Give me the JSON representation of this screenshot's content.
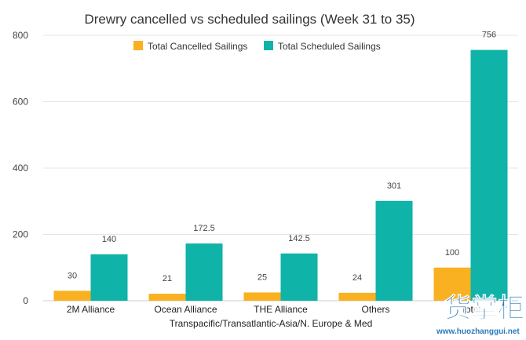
{
  "chart_data": {
    "type": "bar",
    "title": "Drewry cancelled vs scheduled sailings (Week 31 to 35)",
    "xlabel": "Transpacific/Transatlantic-Asia/N. Europe & Med",
    "ylabel": "",
    "categories": [
      "2M Alliance",
      "Ocean Alliance",
      "THE Alliance",
      "Others",
      "Total"
    ],
    "series": [
      {
        "name": "Total Cancelled Sailings",
        "color": "#f9b121",
        "values": [
          30,
          21,
          25,
          24,
          100
        ],
        "labels": [
          "30",
          "21",
          "25",
          "24",
          "100"
        ]
      },
      {
        "name": "Total Scheduled Sailings",
        "color": "#0fb3a8",
        "values": [
          140,
          172.5,
          142.5,
          301,
          756
        ],
        "labels": [
          "140",
          "172.5",
          "142.5",
          "301",
          "756"
        ]
      }
    ],
    "ylim": [
      0,
      800
    ],
    "yticks": [
      0,
      200,
      400,
      600,
      800
    ],
    "grid": true,
    "legend_position": "top"
  },
  "watermark": {
    "logo_text": "货掌柜",
    "url": "www.huozhanggui.net"
  }
}
